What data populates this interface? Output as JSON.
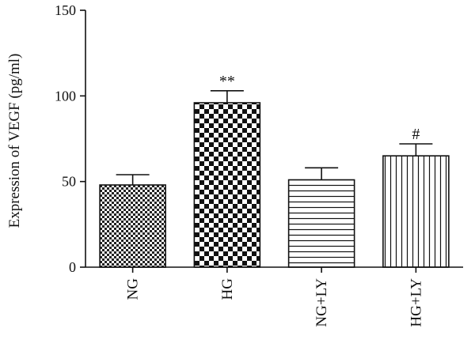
{
  "chart_data": {
    "type": "bar",
    "title": "",
    "xlabel": "",
    "ylabel": "Expression of VEGF (pg/ml)",
    "ylim": [
      0,
      150
    ],
    "yticks": [
      0,
      50,
      100,
      150
    ],
    "grid": false,
    "categories": [
      "NG",
      "HG",
      "NG+LY",
      "HG+LY"
    ],
    "values": [
      48,
      96,
      51,
      65
    ],
    "errors": [
      6,
      7,
      7,
      7
    ],
    "annotations": [
      "",
      "**",
      "",
      "#"
    ],
    "patterns": [
      "small-checker",
      "large-checker",
      "horizontal-lines",
      "vertical-lines"
    ]
  }
}
